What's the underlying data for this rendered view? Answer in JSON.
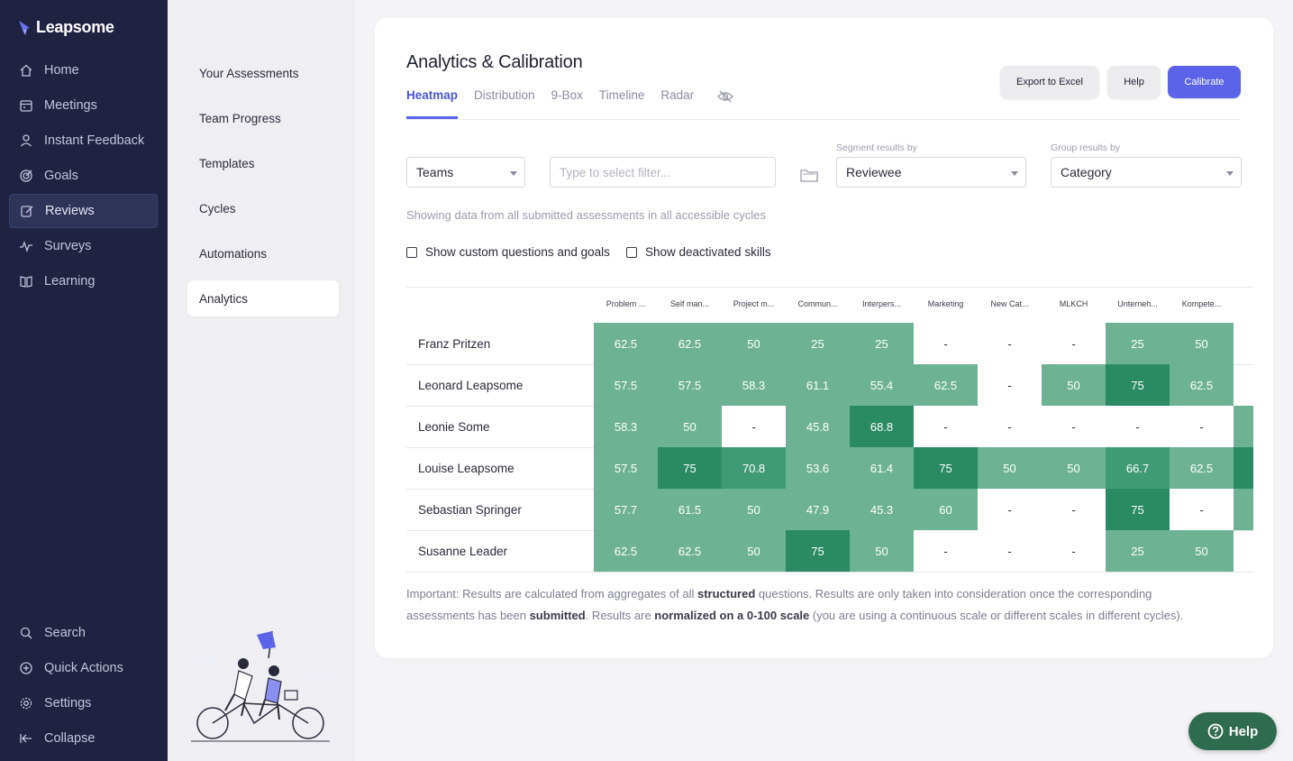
{
  "app": {
    "brand": "Leapsome"
  },
  "sidebar": {
    "items": [
      {
        "label": "Home",
        "icon": "home-icon"
      },
      {
        "label": "Meetings",
        "icon": "calendar-icon"
      },
      {
        "label": "Instant Feedback",
        "icon": "feedback-icon"
      },
      {
        "label": "Goals",
        "icon": "target-icon"
      },
      {
        "label": "Reviews",
        "icon": "edit-icon"
      },
      {
        "label": "Surveys",
        "icon": "pulse-icon"
      },
      {
        "label": "Learning",
        "icon": "book-icon"
      }
    ],
    "bottom": [
      {
        "label": "Search",
        "icon": "search-icon"
      },
      {
        "label": "Quick Actions",
        "icon": "plus-circle-icon"
      },
      {
        "label": "Settings",
        "icon": "gear-icon"
      },
      {
        "label": "Collapse",
        "icon": "collapse-icon"
      }
    ]
  },
  "subnav": {
    "items": [
      "Your Assessments",
      "Team Progress",
      "Templates",
      "Cycles",
      "Automations",
      "Analytics"
    ]
  },
  "page": {
    "title": "Analytics & Calibration",
    "tabs": [
      "Heatmap",
      "Distribution",
      "9-Box",
      "Timeline",
      "Radar"
    ],
    "buttons": {
      "export": "Export to Excel",
      "help": "Help",
      "calibrate": "Calibrate"
    },
    "filters": {
      "teams": "Teams",
      "filter_placeholder": "Type to select filter...",
      "segment_label": "Segment results by",
      "segment_value": "Reviewee",
      "group_label": "Group results by",
      "group_value": "Category"
    },
    "hint": "Showing data from all submitted assessments in all accessible cycles",
    "checkboxes": [
      "Show custom questions and goals",
      "Show deactivated skills"
    ],
    "note": {
      "p1": "Important: Results are calculated from aggregates of all ",
      "b1": "structured",
      "p2": " questions. Results are only taken into consideration once the corresponding assessments has been ",
      "b2": "submitted",
      "p3": ". Results are ",
      "b3": "normalized on a 0-100 scale",
      "p4": " (you are using a continuous scale or different scales in different cycles)."
    }
  },
  "heatmap": {
    "columns": [
      "Problem ...",
      "Self man...",
      "Project m...",
      "Commun...",
      "Interpers...",
      "Marketing",
      "New Cat...",
      "MLKCH",
      "Unterneh...",
      "Kompete..."
    ],
    "rows": [
      {
        "name": "Franz Pritzen",
        "values": [
          "62.5",
          "62.5",
          "50",
          "25",
          "25",
          "-",
          "-",
          "-",
          "25",
          "50"
        ],
        "shade": [
          1,
          1,
          1,
          1,
          1,
          0,
          0,
          0,
          1,
          1
        ],
        "edge": 0
      },
      {
        "name": "Leonard Leapsome",
        "values": [
          "57.5",
          "57.5",
          "58.3",
          "61.1",
          "55.4",
          "62.5",
          "-",
          "50",
          "75",
          "62.5"
        ],
        "shade": [
          1,
          1,
          1,
          1,
          1,
          1,
          0,
          1,
          3,
          1
        ],
        "edge": 0
      },
      {
        "name": "Leonie Some",
        "values": [
          "58.3",
          "50",
          "-",
          "45.8",
          "68.8",
          "-",
          "-",
          "-",
          "-",
          "-"
        ],
        "shade": [
          1,
          1,
          0,
          1,
          3,
          0,
          0,
          0,
          0,
          0
        ],
        "edge": 1
      },
      {
        "name": "Louise Leapsome",
        "values": [
          "57.5",
          "75",
          "70.8",
          "53.6",
          "61.4",
          "75",
          "50",
          "50",
          "66.7",
          "62.5"
        ],
        "shade": [
          1,
          3,
          2,
          1,
          1,
          3,
          1,
          1,
          2,
          1
        ],
        "edge": 3
      },
      {
        "name": "Sebastian Springer",
        "values": [
          "57.7",
          "61.5",
          "50",
          "47.9",
          "45.3",
          "60",
          "-",
          "-",
          "75",
          "-"
        ],
        "shade": [
          1,
          1,
          1,
          1,
          1,
          1,
          0,
          0,
          3,
          0
        ],
        "edge": 1
      },
      {
        "name": "Susanne Leader",
        "values": [
          "62.5",
          "62.5",
          "50",
          "75",
          "50",
          "-",
          "-",
          "-",
          "25",
          "50"
        ],
        "shade": [
          1,
          1,
          1,
          3,
          1,
          0,
          0,
          0,
          1,
          1
        ],
        "edge": 0
      }
    ]
  },
  "help_fab": "Help"
}
